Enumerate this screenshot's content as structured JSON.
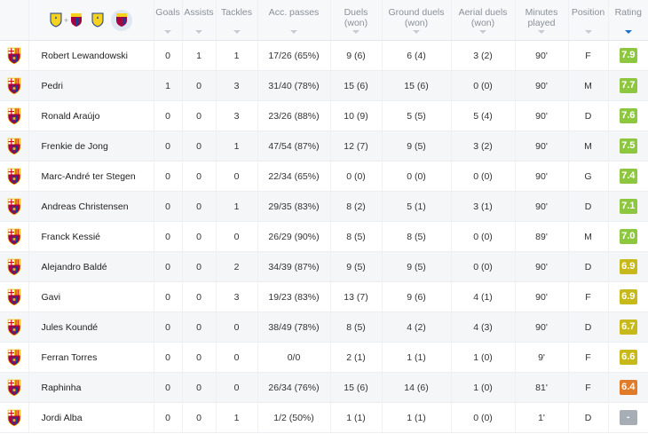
{
  "columns": {
    "goals": "Goals",
    "assists": "Assists",
    "tackles": "Tackles",
    "acc_passes": "Acc. passes",
    "duels": "Duels",
    "duels_sub": "(won)",
    "ground_duels": "Ground duels",
    "ground_duels_sub": "(won)",
    "aerial_duels": "Aerial duels",
    "aerial_duels_sub": "(won)",
    "minutes": "Minutes",
    "minutes_sub": "played",
    "position": "Position",
    "rating": "Rating"
  },
  "header_icons": {
    "match": "villarreal-plus-barcelona-crests",
    "plus": "+",
    "team_a": "villarreal-crest",
    "team_b_selected": "barcelona-crest"
  },
  "colors": {
    "rating_green_dark": "#8dc63f",
    "rating_green": "#8dc63f",
    "rating_yellow": "#c8b91a",
    "rating_orange": "#e07b2a",
    "rating_none": "#a7adb5",
    "sort_active": "#1a73c9"
  },
  "players": [
    {
      "name": "Robert Lewandowski",
      "goals": "0",
      "assists": "1",
      "tackles": "1",
      "passes": "17/26 (65%)",
      "duels": "9 (6)",
      "ground": "6 (4)",
      "aerial": "3 (2)",
      "minutes": "90'",
      "position": "F",
      "rating": "7.9",
      "rating_color": "#8dc63f"
    },
    {
      "name": "Pedri",
      "goals": "1",
      "assists": "0",
      "tackles": "3",
      "passes": "31/40 (78%)",
      "duels": "15 (6)",
      "ground": "15 (6)",
      "aerial": "0 (0)",
      "minutes": "90'",
      "position": "M",
      "rating": "7.7",
      "rating_color": "#8dc63f"
    },
    {
      "name": "Ronald Araújo",
      "goals": "0",
      "assists": "0",
      "tackles": "3",
      "passes": "23/26 (88%)",
      "duels": "10 (9)",
      "ground": "5 (5)",
      "aerial": "5 (4)",
      "minutes": "90'",
      "position": "D",
      "rating": "7.6",
      "rating_color": "#8dc63f"
    },
    {
      "name": "Frenkie de Jong",
      "goals": "0",
      "assists": "0",
      "tackles": "1",
      "passes": "47/54 (87%)",
      "duels": "12 (7)",
      "ground": "9 (5)",
      "aerial": "3 (2)",
      "minutes": "90'",
      "position": "M",
      "rating": "7.5",
      "rating_color": "#8dc63f"
    },
    {
      "name": "Marc-André ter Stegen",
      "goals": "0",
      "assists": "0",
      "tackles": "0",
      "passes": "22/34 (65%)",
      "duels": "0 (0)",
      "ground": "0 (0)",
      "aerial": "0 (0)",
      "minutes": "90'",
      "position": "G",
      "rating": "7.4",
      "rating_color": "#8dc63f"
    },
    {
      "name": "Andreas Christensen",
      "goals": "0",
      "assists": "0",
      "tackles": "1",
      "passes": "29/35 (83%)",
      "duels": "8 (2)",
      "ground": "5 (1)",
      "aerial": "3 (1)",
      "minutes": "90'",
      "position": "D",
      "rating": "7.1",
      "rating_color": "#8dc63f"
    },
    {
      "name": "Franck Kessié",
      "goals": "0",
      "assists": "0",
      "tackles": "0",
      "passes": "26/29 (90%)",
      "duels": "8 (5)",
      "ground": "8 (5)",
      "aerial": "0 (0)",
      "minutes": "89'",
      "position": "M",
      "rating": "7.0",
      "rating_color": "#8dc63f"
    },
    {
      "name": "Alejandro Baldé",
      "goals": "0",
      "assists": "0",
      "tackles": "2",
      "passes": "34/39 (87%)",
      "duels": "9 (5)",
      "ground": "9 (5)",
      "aerial": "0 (0)",
      "minutes": "90'",
      "position": "D",
      "rating": "6.9",
      "rating_color": "#c8b91a"
    },
    {
      "name": "Gavi",
      "goals": "0",
      "assists": "0",
      "tackles": "3",
      "passes": "19/23 (83%)",
      "duels": "13 (7)",
      "ground": "9 (6)",
      "aerial": "4 (1)",
      "minutes": "90'",
      "position": "F",
      "rating": "6.9",
      "rating_color": "#c8b91a"
    },
    {
      "name": "Jules Koundé",
      "goals": "0",
      "assists": "0",
      "tackles": "0",
      "passes": "38/49 (78%)",
      "duels": "8 (5)",
      "ground": "4 (2)",
      "aerial": "4 (3)",
      "minutes": "90'",
      "position": "D",
      "rating": "6.7",
      "rating_color": "#c8b91a"
    },
    {
      "name": "Ferran Torres",
      "goals": "0",
      "assists": "0",
      "tackles": "0",
      "passes": "0/0",
      "duels": "2 (1)",
      "ground": "1 (1)",
      "aerial": "1 (0)",
      "minutes": "9'",
      "position": "F",
      "rating": "6.6",
      "rating_color": "#c8b91a"
    },
    {
      "name": "Raphinha",
      "goals": "0",
      "assists": "0",
      "tackles": "0",
      "passes": "26/34 (76%)",
      "duels": "15 (6)",
      "ground": "14 (6)",
      "aerial": "1 (0)",
      "minutes": "81'",
      "position": "F",
      "rating": "6.4",
      "rating_color": "#e07b2a"
    },
    {
      "name": "Jordi Alba",
      "goals": "0",
      "assists": "0",
      "tackles": "1",
      "passes": "1/2 (50%)",
      "duels": "1 (1)",
      "ground": "1 (1)",
      "aerial": "0 (0)",
      "minutes": "1'",
      "position": "D",
      "rating": "-",
      "rating_color": "#a7adb5"
    }
  ]
}
